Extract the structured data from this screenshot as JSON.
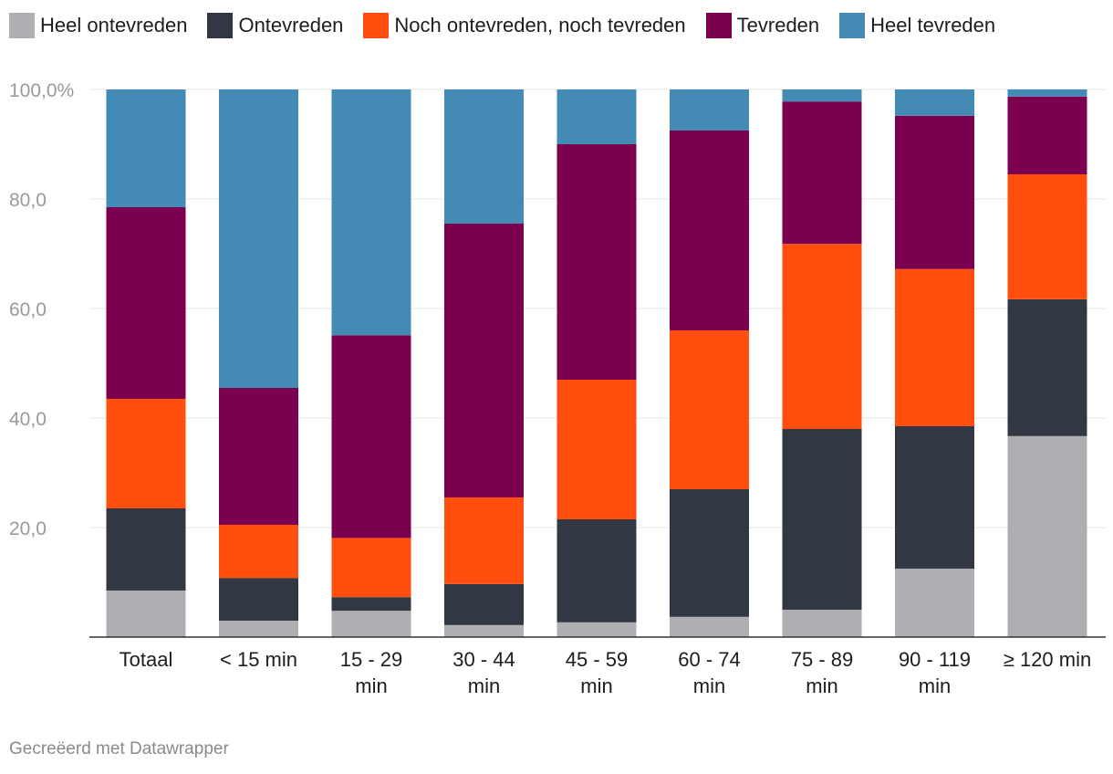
{
  "footer": {
    "credit": "Gecreëerd met Datawrapper"
  },
  "chart_data": {
    "type": "bar",
    "stacked": true,
    "orientation": "vertical",
    "title": "",
    "xlabel": "",
    "ylabel": "",
    "ylim": [
      0,
      100
    ],
    "yticks": [
      {
        "value": 20,
        "label": "20,0"
      },
      {
        "value": 40,
        "label": "40,0"
      },
      {
        "value": 60,
        "label": "60,0"
      },
      {
        "value": 80,
        "label": "80,0"
      },
      {
        "value": 100,
        "label": "100,0%"
      }
    ],
    "grid": true,
    "legend_position": "top-left",
    "categories": [
      "Totaal",
      "< 15 min",
      "15 - 29 min",
      "30 - 44 min",
      "45 - 59 min",
      "60 - 74 min",
      "75 - 89 min",
      "90 - 119 min",
      "≥ 120 min"
    ],
    "category_lines": [
      [
        "Totaal"
      ],
      [
        "< 15 min"
      ],
      [
        "15 - 29",
        "min"
      ],
      [
        "30 - 44",
        "min"
      ],
      [
        "45 - 59",
        "min"
      ],
      [
        "60 - 74",
        "min"
      ],
      [
        "75 - 89",
        "min"
      ],
      [
        "90 - 119",
        "min"
      ],
      [
        "≥ 120 min"
      ]
    ],
    "series": [
      {
        "name": "Heel ontevreden",
        "color": "#adafb3",
        "values": [
          8.5,
          3.0,
          4.8,
          2.2,
          2.7,
          3.7,
          5.0,
          12.5,
          36.7
        ]
      },
      {
        "name": "Ontevreden",
        "color": "#323843",
        "values": [
          15.0,
          7.8,
          2.5,
          7.5,
          18.8,
          23.3,
          33.0,
          26.0,
          25.0
        ]
      },
      {
        "name": "Noch ontevreden, noch tevreden",
        "color": "#ff4e0d",
        "values": [
          20.0,
          9.7,
          10.8,
          15.8,
          25.5,
          29.0,
          33.8,
          28.7,
          22.8
        ]
      },
      {
        "name": "Tevreden",
        "color": "#7c0050",
        "values": [
          35.0,
          25.0,
          37.0,
          50.0,
          43.0,
          36.5,
          26.0,
          28.0,
          14.2
        ]
      },
      {
        "name": "Heel tevreden",
        "color": "#438bb5",
        "values": [
          21.5,
          54.5,
          44.9,
          24.5,
          10.0,
          7.5,
          2.2,
          4.8,
          1.3
        ]
      }
    ]
  }
}
